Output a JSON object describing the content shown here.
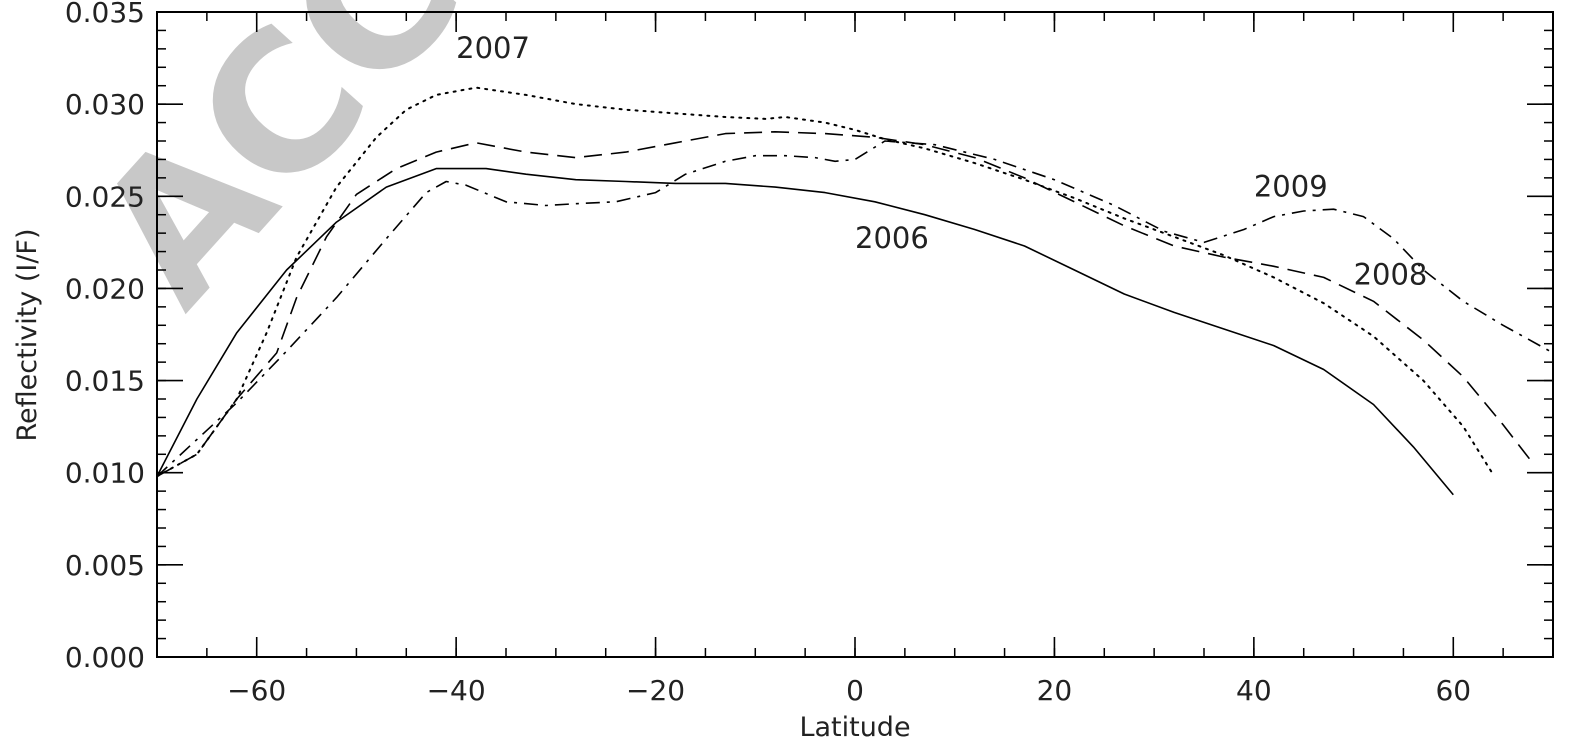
{
  "watermark": "ACCEPTED",
  "chart_data": {
    "type": "line",
    "title": "",
    "xlabel": "Latitude",
    "ylabel": "Reflectivity (I/F)",
    "xlim": [
      -70,
      70
    ],
    "ylim": [
      0.0,
      0.035
    ],
    "x_major_ticks": [
      -60,
      -40,
      -20,
      0,
      20,
      40,
      60
    ],
    "x_tick_labels": [
      "−60",
      "−40",
      "−20",
      "0",
      "20",
      "40",
      "60"
    ],
    "x_minor_step": 5,
    "y_major_ticks": [
      0.0,
      0.005,
      0.01,
      0.015,
      0.02,
      0.025,
      0.03,
      0.035
    ],
    "y_tick_labels": [
      "0.000",
      "0.005",
      "0.010",
      "0.015",
      "0.020",
      "0.025",
      "0.030",
      "0.035"
    ],
    "y_minor_step": 0.001,
    "grid": false,
    "legend": "none (series labeled inline)",
    "series": [
      {
        "name": "2006",
        "style": "solid",
        "label_at": [
          0,
          0.0222
        ],
        "x": [
          -70,
          -66,
          -62,
          -57,
          -52,
          -47,
          -42,
          -37,
          -33,
          -28,
          -23,
          -18,
          -13,
          -8,
          -3,
          2,
          7,
          12,
          17,
          22,
          27,
          32,
          37,
          42,
          47,
          52,
          56,
          60
        ],
        "y": [
          0.0098,
          0.014,
          0.0176,
          0.021,
          0.0236,
          0.0255,
          0.0265,
          0.0265,
          0.0262,
          0.0259,
          0.0258,
          0.0257,
          0.0257,
          0.0255,
          0.0252,
          0.0247,
          0.024,
          0.0232,
          0.0223,
          0.021,
          0.0197,
          0.0187,
          0.0178,
          0.0169,
          0.0156,
          0.0137,
          0.0114,
          0.0088
        ]
      },
      {
        "name": "2007",
        "style": "dotted",
        "label_at": [
          -40,
          0.0325
        ],
        "x": [
          -70,
          -66,
          -62,
          -59,
          -56,
          -52,
          -48,
          -45,
          -42,
          -38,
          -33,
          -28,
          -23,
          -18,
          -13,
          -9,
          -7,
          -3,
          0,
          3,
          7,
          12,
          17,
          22,
          27,
          32,
          37,
          42,
          47,
          52,
          57,
          61,
          64
        ],
        "y": [
          0.0098,
          0.011,
          0.014,
          0.0176,
          0.0217,
          0.0255,
          0.0282,
          0.0297,
          0.0305,
          0.0309,
          0.0305,
          0.03,
          0.0297,
          0.0295,
          0.0293,
          0.0292,
          0.0293,
          0.029,
          0.0286,
          0.0281,
          0.0276,
          0.0268,
          0.0259,
          0.0249,
          0.0238,
          0.0228,
          0.0218,
          0.0206,
          0.0192,
          0.0174,
          0.015,
          0.0125,
          0.0099
        ]
      },
      {
        "name": "2008",
        "style": "dashed",
        "label_at": [
          50,
          0.0202
        ],
        "x": [
          -70,
          -66,
          -62,
          -58,
          -56,
          -53,
          -50,
          -46,
          -42,
          -38,
          -33,
          -28,
          -23,
          -18,
          -13,
          -8,
          -3,
          2,
          7,
          12,
          17,
          22,
          27,
          32,
          37,
          42,
          47,
          52,
          57,
          61,
          65,
          68
        ],
        "y": [
          0.0098,
          0.011,
          0.014,
          0.0165,
          0.0195,
          0.0228,
          0.0251,
          0.0265,
          0.0274,
          0.0279,
          0.0274,
          0.0271,
          0.0274,
          0.0279,
          0.0284,
          0.0285,
          0.0284,
          0.0282,
          0.0278,
          0.0271,
          0.026,
          0.0247,
          0.0234,
          0.0223,
          0.0217,
          0.0212,
          0.0206,
          0.0193,
          0.0172,
          0.0152,
          0.0126,
          0.0105
        ]
      },
      {
        "name": "2009",
        "style": "dashdot",
        "label_at": [
          40,
          0.025
        ],
        "x": [
          -70,
          -66,
          -62,
          -57,
          -52,
          -47,
          -43,
          -41,
          -39,
          -35,
          -31,
          -28,
          -24,
          -20,
          -17,
          -13,
          -10,
          -7,
          -4,
          -2,
          0,
          3,
          8,
          14,
          20,
          26,
          31,
          35,
          39,
          42,
          45,
          48,
          51,
          54,
          57,
          61,
          65,
          70
        ],
        "y": [
          0.0098,
          0.0118,
          0.0138,
          0.0166,
          0.0195,
          0.0227,
          0.0252,
          0.0258,
          0.0256,
          0.0247,
          0.0245,
          0.0246,
          0.0247,
          0.0252,
          0.0262,
          0.0269,
          0.0272,
          0.0272,
          0.0271,
          0.0269,
          0.027,
          0.028,
          0.0278,
          0.027,
          0.0259,
          0.0245,
          0.0231,
          0.0225,
          0.0232,
          0.0239,
          0.0242,
          0.0243,
          0.0239,
          0.0227,
          0.021,
          0.0193,
          0.018,
          0.0165
        ]
      }
    ]
  }
}
